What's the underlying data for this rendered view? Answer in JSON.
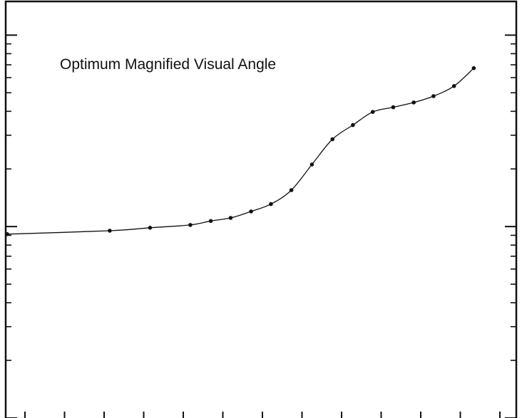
{
  "chart_data": {
    "type": "line",
    "title": "Optimum Magnified Visual Angle",
    "xlabel": "",
    "ylabel": "",
    "y_scale": "log",
    "grid": false,
    "legend": "none",
    "x": [
      0,
      140,
      195,
      250,
      278,
      305,
      333,
      360,
      388,
      416,
      444,
      472,
      499,
      527,
      555,
      582,
      610,
      637
    ],
    "series": [
      {
        "values": [
          0.913,
          0.951,
          0.986,
          1.02,
          1.07,
          1.11,
          1.2,
          1.31,
          1.55,
          2.11,
          2.86,
          3.39,
          3.97,
          4.2,
          4.45,
          4.8,
          5.42,
          6.72
        ]
      }
    ],
    "xlim": [
      -2,
      695
    ],
    "ylim": [
      0.1,
      15
    ],
    "colors": {
      "line": "#111111",
      "marker": "#111111",
      "frame": "#111111",
      "background": "#ffffff"
    }
  }
}
